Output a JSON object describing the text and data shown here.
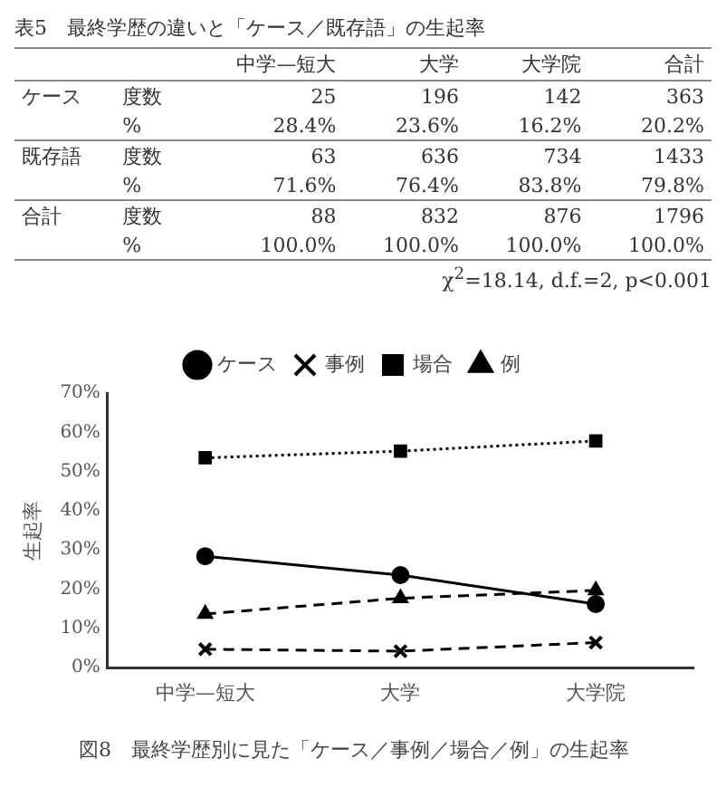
{
  "chart_data": [
    {
      "type": "other",
      "title": "表5　最終学歴の違いと「ケース／既存語」の生起率",
      "categories": [
        "中学—短大",
        "大学",
        "大学院",
        "合計"
      ],
      "y_categories": [
        "ケース",
        null,
        "既存語",
        null,
        "合計",
        null
      ],
      "y2_categories": [
        "度数",
        "%",
        "度数",
        "%",
        "度数",
        "%"
      ],
      "cells": [
        [
          "25",
          "196",
          "142",
          "363"
        ],
        [
          "28.4%",
          "23.6%",
          "16.2%",
          "20.2%"
        ],
        [
          "63",
          "636",
          "734",
          "1433"
        ],
        [
          "71.6%",
          "76.4%",
          "83.8%",
          "79.8%"
        ],
        [
          "88",
          "832",
          "876",
          "1796"
        ],
        [
          "100.0%",
          "100.0%",
          "100.0%",
          "100.0%"
        ]
      ],
      "annotations": [
        "χ$^{2}$=18.14, d.f.=2, p<0.001"
      ]
    },
    {
      "type": "line",
      "title": "図8　最終学歴別に見た「ケース／事例／場合／例」の生起率",
      "ylabel": "生起率",
      "categories": [
        "中学—短大",
        "大学",
        "大学院"
      ],
      "series": [
        {
          "name": "ケース",
          "color": "#000000",
          "values": [
            28.4,
            23.6,
            16.2
          ],
          "marker": "circle",
          "line_style": "solid"
        },
        {
          "name": "事例",
          "color": "#000000",
          "values": [
            4.7,
            4.2,
            6.4
          ],
          "marker": "cross",
          "line_style": "dashed"
        },
        {
          "name": "場合",
          "color": "#000000",
          "values": [
            53.5,
            55.2,
            57.8
          ],
          "marker": "square",
          "line_style": "dotted"
        },
        {
          "name": "例",
          "color": "#000000",
          "values": [
            13.7,
            17.7,
            19.7
          ],
          "marker": "triangle",
          "line_style": "dashed"
        }
      ],
      "ylim": [
        0,
        70
      ],
      "yticks": [
        {
          "value": 0,
          "label": "0%"
        },
        {
          "value": 10,
          "label": "10%"
        },
        {
          "value": 20,
          "label": "20%"
        },
        {
          "value": 30,
          "label": "30%"
        },
        {
          "value": 40,
          "label": "40%"
        },
        {
          "value": 50,
          "label": "50%"
        },
        {
          "value": 60,
          "label": "60%"
        },
        {
          "value": 70,
          "label": "70%"
        }
      ],
      "grid": false,
      "legend": "top"
    }
  ]
}
